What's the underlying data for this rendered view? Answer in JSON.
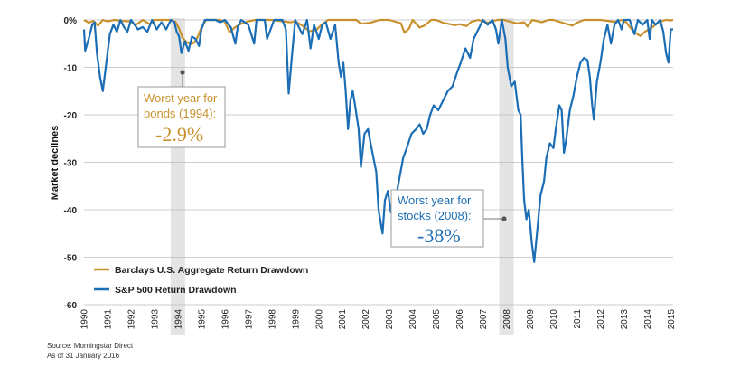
{
  "chart_data": {
    "type": "line",
    "title": "",
    "xlabel": "",
    "ylabel": "Market declines",
    "ylim": [
      -60,
      0
    ],
    "yticks": [
      0,
      -10,
      -20,
      -30,
      -40,
      -50,
      -60
    ],
    "ytick_labels": [
      "0%",
      "-10",
      "-20",
      "-30",
      "-40",
      "-50",
      "-60"
    ],
    "xlim": [
      1990,
      2015.1
    ],
    "xtick_labels": [
      "1990",
      "1991",
      "1992",
      "1993",
      "1994",
      "1995",
      "1996",
      "1997",
      "1998",
      "1999",
      "2000",
      "2001",
      "2002",
      "2003",
      "2004",
      "2005",
      "2006",
      "2007",
      "2008",
      "2009",
      "2010",
      "2011",
      "2012",
      "2013",
      "2014",
      "2015"
    ],
    "highlight_years": [
      1994,
      2008
    ],
    "series": [
      {
        "name": "Barclays U.S. Aggregate Return Drawdown",
        "color": "#C8912E",
        "points": [
          [
            1990,
            0
          ],
          [
            1990.2,
            -0.6
          ],
          [
            1990.4,
            -0.2
          ],
          [
            1990.6,
            -1.2
          ],
          [
            1990.8,
            0
          ],
          [
            1991,
            -0.3
          ],
          [
            1991.3,
            0
          ],
          [
            1991.6,
            -0.2
          ],
          [
            1992,
            -0.3
          ],
          [
            1992.2,
            -1.1
          ],
          [
            1992.5,
            0
          ],
          [
            1992.8,
            -0.9
          ],
          [
            1993,
            0
          ],
          [
            1993.4,
            0
          ],
          [
            1993.7,
            0
          ],
          [
            1993.9,
            -0.4
          ],
          [
            1994.05,
            -1.8
          ],
          [
            1994.2,
            -3.8
          ],
          [
            1994.35,
            -4.6
          ],
          [
            1994.55,
            -5.1
          ],
          [
            1994.7,
            -4.8
          ],
          [
            1994.85,
            -3.5
          ],
          [
            1995,
            -1.6
          ],
          [
            1995.2,
            0
          ],
          [
            1995.5,
            0
          ],
          [
            1995.8,
            0
          ],
          [
            1996,
            -0.4
          ],
          [
            1996.2,
            -2.6
          ],
          [
            1996.45,
            -1.5
          ],
          [
            1996.7,
            -0.8
          ],
          [
            1997,
            -0.3
          ],
          [
            1997.3,
            0
          ],
          [
            1997.6,
            0
          ],
          [
            1998,
            0
          ],
          [
            1998.8,
            -0.5
          ],
          [
            1999,
            -0.3
          ],
          [
            1999.3,
            -1.2
          ],
          [
            1999.6,
            -2.4
          ],
          [
            1999.9,
            -2.1
          ],
          [
            2000.1,
            -1.1
          ],
          [
            2000.4,
            0
          ],
          [
            2001,
            0
          ],
          [
            2001.6,
            0
          ],
          [
            2001.8,
            -0.8
          ],
          [
            2002.2,
            -0.6
          ],
          [
            2002.6,
            0
          ],
          [
            2003,
            0
          ],
          [
            2003.5,
            -0.7
          ],
          [
            2003.65,
            -2.7
          ],
          [
            2003.85,
            -1.8
          ],
          [
            2004,
            0
          ],
          [
            2004.3,
            -1.6
          ],
          [
            2004.5,
            -1.2
          ],
          [
            2004.8,
            0
          ],
          [
            2005,
            0
          ],
          [
            2005.3,
            -0.6
          ],
          [
            2005.8,
            -1.1
          ],
          [
            2006,
            -0.9
          ],
          [
            2006.3,
            -1.3
          ],
          [
            2006.5,
            -0.4
          ],
          [
            2006.8,
            0
          ],
          [
            2007.2,
            -0.6
          ],
          [
            2007.6,
            0
          ],
          [
            2007.9,
            0
          ],
          [
            2008.15,
            -0.4
          ],
          [
            2008.45,
            -0.7
          ],
          [
            2008.75,
            -0.5
          ],
          [
            2008.9,
            -1.4
          ],
          [
            2009.1,
            0
          ],
          [
            2009.5,
            -0.5
          ],
          [
            2009.8,
            0
          ],
          [
            2010,
            0
          ],
          [
            2010.8,
            -1.2
          ],
          [
            2011,
            -0.6
          ],
          [
            2011.3,
            0
          ],
          [
            2012,
            0
          ],
          [
            2012.6,
            -0.4
          ],
          [
            2012.9,
            0
          ],
          [
            2013.1,
            -0.5
          ],
          [
            2013.4,
            -2.4
          ],
          [
            2013.7,
            -3.4
          ],
          [
            2013.9,
            -2.5
          ],
          [
            2014.2,
            -1.6
          ],
          [
            2014.5,
            -0.4
          ],
          [
            2014.8,
            0
          ],
          [
            2015,
            -0.1
          ],
          [
            2015.1,
            0
          ]
        ]
      },
      {
        "name": "S&P 500 Return Drawdown",
        "color": "#1B6EB5",
        "points": [
          [
            1990,
            -2
          ],
          [
            1990.05,
            -6.5
          ],
          [
            1990.2,
            -4
          ],
          [
            1990.35,
            -1
          ],
          [
            1990.45,
            -0.5
          ],
          [
            1990.55,
            -7
          ],
          [
            1990.68,
            -12
          ],
          [
            1990.8,
            -15
          ],
          [
            1990.95,
            -9
          ],
          [
            1991.1,
            -3
          ],
          [
            1991.25,
            -1
          ],
          [
            1991.4,
            -2.5
          ],
          [
            1991.55,
            0
          ],
          [
            1991.7,
            -1.5
          ],
          [
            1991.85,
            -2.5
          ],
          [
            1992,
            0
          ],
          [
            1992.3,
            -2
          ],
          [
            1992.5,
            -1.5
          ],
          [
            1992.7,
            -2.5
          ],
          [
            1992.9,
            0
          ],
          [
            1993.1,
            -2
          ],
          [
            1993.3,
            -0.5
          ],
          [
            1993.5,
            -2
          ],
          [
            1993.7,
            0
          ],
          [
            1993.85,
            -0.5
          ],
          [
            1993.95,
            -2.5
          ],
          [
            1994.05,
            -3.5
          ],
          [
            1994.15,
            -7
          ],
          [
            1994.3,
            -4.5
          ],
          [
            1994.45,
            -6.5
          ],
          [
            1994.6,
            -3.5
          ],
          [
            1994.75,
            -4
          ],
          [
            1994.9,
            -5.5
          ],
          [
            1995,
            -2
          ],
          [
            1995.15,
            0
          ],
          [
            1995.6,
            0
          ],
          [
            1995.8,
            -0.5
          ],
          [
            1996,
            0
          ],
          [
            1996.25,
            -1.5
          ],
          [
            1996.45,
            -5
          ],
          [
            1996.55,
            -1.5
          ],
          [
            1996.7,
            0
          ],
          [
            1997,
            -1
          ],
          [
            1997.25,
            -5
          ],
          [
            1997.35,
            0
          ],
          [
            1997.7,
            0
          ],
          [
            1997.8,
            -4
          ],
          [
            1997.95,
            -2
          ],
          [
            1998.1,
            0
          ],
          [
            1998.45,
            0
          ],
          [
            1998.6,
            -2
          ],
          [
            1998.72,
            -15.5
          ],
          [
            1998.85,
            -8
          ],
          [
            1999,
            0
          ],
          [
            1999.3,
            -3
          ],
          [
            1999.5,
            0
          ],
          [
            1999.65,
            -6
          ],
          [
            1999.8,
            -1
          ],
          [
            2000,
            -4
          ],
          [
            2000.15,
            -1
          ],
          [
            2000.3,
            -0.5
          ],
          [
            2000.5,
            -4
          ],
          [
            2000.7,
            -1
          ],
          [
            2000.85,
            -9
          ],
          [
            2000.95,
            -12
          ],
          [
            2001.05,
            -9
          ],
          [
            2001.15,
            -15
          ],
          [
            2001.25,
            -23
          ],
          [
            2001.35,
            -17
          ],
          [
            2001.45,
            -15
          ],
          [
            2001.55,
            -18
          ],
          [
            2001.7,
            -23
          ],
          [
            2001.8,
            -31
          ],
          [
            2001.95,
            -24
          ],
          [
            2002.1,
            -23
          ],
          [
            2002.25,
            -27
          ],
          [
            2002.45,
            -32
          ],
          [
            2002.55,
            -40
          ],
          [
            2002.65,
            -43
          ],
          [
            2002.72,
            -45
          ],
          [
            2002.82,
            -38
          ],
          [
            2002.95,
            -36
          ],
          [
            2003.05,
            -40
          ],
          [
            2003.18,
            -42
          ],
          [
            2003.3,
            -37
          ],
          [
            2003.45,
            -33
          ],
          [
            2003.6,
            -29
          ],
          [
            2003.75,
            -27
          ],
          [
            2003.95,
            -24
          ],
          [
            2004.15,
            -23
          ],
          [
            2004.3,
            -22
          ],
          [
            2004.45,
            -24
          ],
          [
            2004.6,
            -23
          ],
          [
            2004.75,
            -20
          ],
          [
            2004.9,
            -18
          ],
          [
            2005.1,
            -19
          ],
          [
            2005.3,
            -17
          ],
          [
            2005.5,
            -15
          ],
          [
            2005.7,
            -14
          ],
          [
            2005.9,
            -11
          ],
          [
            2006.05,
            -9
          ],
          [
            2006.25,
            -6
          ],
          [
            2006.45,
            -8
          ],
          [
            2006.6,
            -4
          ],
          [
            2006.8,
            -2
          ],
          [
            2007,
            0
          ],
          [
            2007.2,
            -1
          ],
          [
            2007.4,
            0
          ],
          [
            2007.55,
            -2
          ],
          [
            2007.65,
            -5
          ],
          [
            2007.8,
            0
          ],
          [
            2007.95,
            -4
          ],
          [
            2008.05,
            -10
          ],
          [
            2008.2,
            -14
          ],
          [
            2008.35,
            -13
          ],
          [
            2008.5,
            -19
          ],
          [
            2008.6,
            -20
          ],
          [
            2008.68,
            -30
          ],
          [
            2008.75,
            -38
          ],
          [
            2008.85,
            -42
          ],
          [
            2008.95,
            -40
          ],
          [
            2009.08,
            -47
          ],
          [
            2009.18,
            -51
          ],
          [
            2009.3,
            -45
          ],
          [
            2009.45,
            -37
          ],
          [
            2009.6,
            -34
          ],
          [
            2009.7,
            -29
          ],
          [
            2009.85,
            -26
          ],
          [
            2010,
            -27
          ],
          [
            2010.1,
            -23
          ],
          [
            2010.25,
            -18
          ],
          [
            2010.35,
            -19
          ],
          [
            2010.45,
            -28
          ],
          [
            2010.55,
            -25
          ],
          [
            2010.7,
            -19
          ],
          [
            2010.85,
            -16
          ],
          [
            2011,
            -12
          ],
          [
            2011.15,
            -9
          ],
          [
            2011.3,
            -8
          ],
          [
            2011.45,
            -8.5
          ],
          [
            2011.55,
            -12
          ],
          [
            2011.65,
            -18
          ],
          [
            2011.72,
            -21
          ],
          [
            2011.85,
            -13
          ],
          [
            2012,
            -9
          ],
          [
            2012.15,
            -4
          ],
          [
            2012.3,
            -1
          ],
          [
            2012.45,
            -5
          ],
          [
            2012.6,
            -1
          ],
          [
            2012.75,
            0
          ],
          [
            2012.9,
            -2
          ],
          [
            2013,
            0
          ],
          [
            2013.25,
            0
          ],
          [
            2013.45,
            -3
          ],
          [
            2013.6,
            0
          ],
          [
            2013.8,
            -1
          ],
          [
            2014,
            0
          ],
          [
            2014.1,
            -4
          ],
          [
            2014.2,
            0
          ],
          [
            2014.35,
            -1
          ],
          [
            2014.55,
            0
          ],
          [
            2014.68,
            -2.5
          ],
          [
            2014.8,
            -7
          ],
          [
            2014.9,
            -9
          ],
          [
            2015,
            -2
          ],
          [
            2015.1,
            -2
          ]
        ]
      }
    ],
    "annotations": [
      {
        "title_lines": [
          "Worst year for",
          "bonds (1994):"
        ],
        "value": "-2.9%",
        "anchor_x": 1994.05,
        "anchor_y": -11,
        "color": "#C8912E"
      },
      {
        "title_lines": [
          "Worst year for",
          "stocks (2008):"
        ],
        "value": "-38%",
        "anchor_x": 2008.0,
        "anchor_y": -42,
        "color": "#1B6EB5"
      }
    ]
  },
  "source": {
    "line1": "Source: Morningstar Direct",
    "line2": "As of 31 January 2016"
  }
}
